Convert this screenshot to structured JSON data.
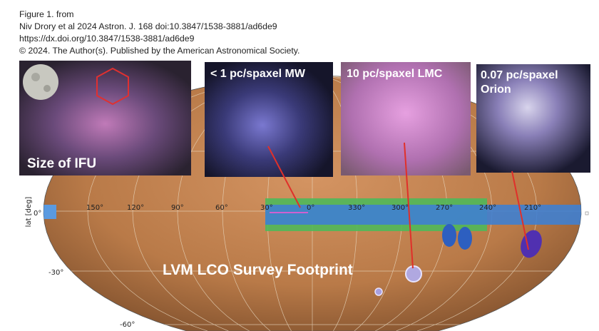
{
  "caption": {
    "line1": "Figure 1. from",
    "line2": "Niv Drory et al 2024 Astron. J. 168 doi:10.3847/1538-3881/ad6de9",
    "line3": "https://dx.doi.org/10.3847/1538-3881/ad6de9",
    "line4": "© 2024. The Author(s). Published by the American Astronomical Society."
  },
  "panels": {
    "ifu": "Size of IFU",
    "mw": "< 1 pc/spaxel MW",
    "lmc": "10 pc/spaxel LMC",
    "orion_line1": "0.07 pc/spaxel",
    "orion_line2": "Orion"
  },
  "map": {
    "title": "LVM LCO Survey Footprint",
    "ylabel": "lat [deg]",
    "lon_ticks": [
      "150°",
      "120°",
      "90°",
      "60°",
      "30°",
      "0°",
      "330°",
      "300°",
      "270°",
      "240°",
      "210°"
    ],
    "lat_ticks": [
      "0°",
      "-30°",
      "-60°"
    ],
    "colors": {
      "sky": "#c98a55",
      "mw_band": "#3f7fd0",
      "green_band": "#4fb85a",
      "arrow": "#e0302a"
    }
  }
}
